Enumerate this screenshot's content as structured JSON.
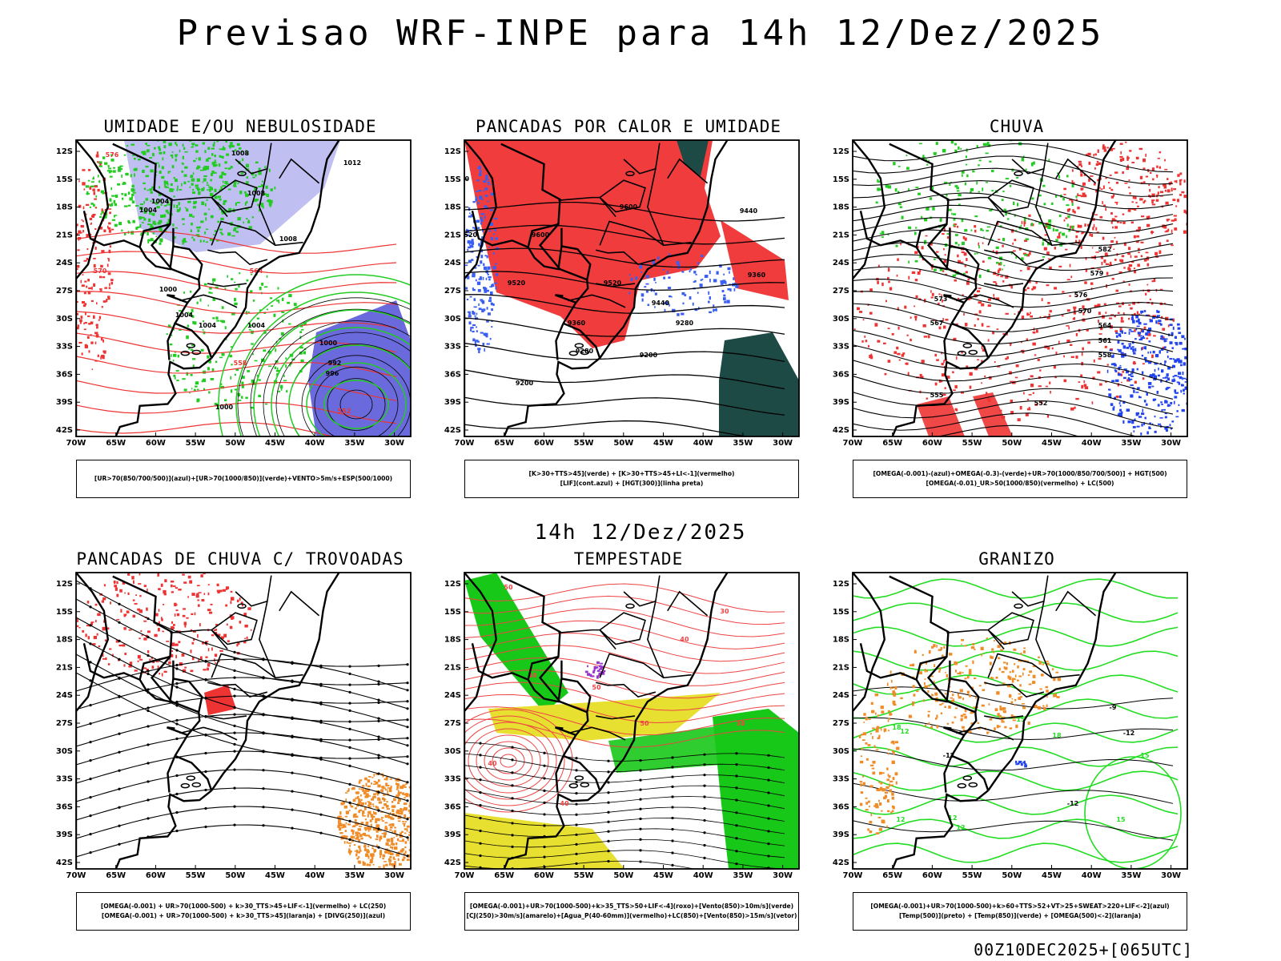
{
  "header": {
    "title": "Previsao WRF-INPE  para 14h 12/Dez/2025"
  },
  "mid_label": "14h 12/Dez/2025",
  "footer_code": "00Z10DEC2025+[065UTC]",
  "axes": {
    "lat_ticks": [
      "12S",
      "15S",
      "18S",
      "21S",
      "24S",
      "27S",
      "30S",
      "33S",
      "36S",
      "39S",
      "42S"
    ],
    "lon_ticks": [
      "70W",
      "65W",
      "60W",
      "55W",
      "50W",
      "45W",
      "40W",
      "35W",
      "30W"
    ]
  },
  "panels": [
    {
      "title": "UMIDADE E/OU NEBULOSIDADE",
      "legend": [
        "[UR>70(850/700/500)](azul)+[UR>70(1000/850)](verde)+VENTO>5m/s+ESP(500/1000)"
      ],
      "contour_labels": [
        "1008",
        "1004",
        "1000",
        "1012",
        "1008",
        "1004",
        "1008",
        "996",
        "992",
        "1004",
        "1004",
        "1004",
        "1000",
        "1000",
        "576",
        "570",
        "564",
        "558",
        "552"
      ],
      "colors": {
        "blue_fill": "#b8b8f0",
        "deep_blue": "#5a5ad8",
        "green": "#22cc22",
        "red": "#ee3333"
      }
    },
    {
      "title": "PANCADAS POR CALOR E UMIDADE",
      "legend": [
        "[K>30+TTS>45](verde) + [K>30+TTS>45+LI<-1](vermelho)",
        "[LIF](cont.azul) + [HGT(300)](linha preta)"
      ],
      "contour_labels": [
        "9600",
        "9520",
        "9600",
        "9600",
        "9520",
        "9520",
        "9440",
        "9440",
        "9360",
        "9360",
        "9280",
        "9280",
        "9200",
        "9200"
      ],
      "colors": {
        "red_fill": "#f03c3c",
        "dark_green": "#1e4a46",
        "blue": "#3a5ef0"
      }
    },
    {
      "title": "CHUVA",
      "legend": [
        "[OMEGA(-0.001)-(azul)+OMEGA(-0.3)-(verde)+UR>70(1000/850/700/500)] + HGT(500)",
        "[OMEGA(-0.01)_UR>50(1000/850)(vermelho) + LC(500)"
      ],
      "contour_labels": [
        "582",
        "579",
        "576",
        "573",
        "570",
        "567",
        "564",
        "561",
        "558",
        "555",
        "552"
      ],
      "colors": {
        "red": "#ee3333",
        "blue": "#2244ee",
        "green": "#22cc22"
      }
    },
    {
      "title": "PANCADAS DE CHUVA C/ TROVOADAS",
      "legend": [
        "[OMEGA(-0.001) + UR>70(1000-500) + k>30_TTS>45+LIF<-1](vermelho) + LC(250)",
        "[OMEGA(-0.001) + UR>70(1000-500) + k>30_TTS>45](laranja) + [DIVG(250)](azul)"
      ],
      "contour_labels": [],
      "colors": {
        "red": "#ee3333",
        "orange": "#f08c28"
      }
    },
    {
      "title": "TEMPESTADE",
      "legend": [
        "[OMEGA(-0.001)+UR>70(1000-500)+k>35_TTS>50+LIF<-4](roxo)+[Vento(850)>10m/s](verde)",
        "[CJ(250)>30m/s](amarelo)+[Agua_P(40-60mm)](vermelho)+LC(850)+[Vento(850)>15m/s](vetor)"
      ],
      "contour_labels": [
        "50",
        "40",
        "50",
        "40",
        "30",
        "50",
        "40",
        "30",
        "40"
      ],
      "colors": {
        "green": "#18c818",
        "yellow": "#e8e030",
        "red": "#ee4444",
        "purple": "#9933cc"
      }
    },
    {
      "title": "GRANIZO",
      "legend": [
        "[OMEGA(-0.001)+UR>70(1000-500)+k>60+TTS>52+VT>25+SWEAT>220+LIF<-2](azul)",
        "[Temp(500)](preto) + [Temp(850)](verde) + [OMEGA(500)<-2](laranja)"
      ],
      "contour_labels": [
        "-9",
        "-12",
        "-12",
        "-12",
        "18",
        "15",
        "12",
        "12",
        "12",
        "15",
        "18",
        "15",
        "12"
      ],
      "colors": {
        "green": "#22dd22",
        "orange": "#f08c28",
        "blue": "#2244ee"
      }
    }
  ]
}
